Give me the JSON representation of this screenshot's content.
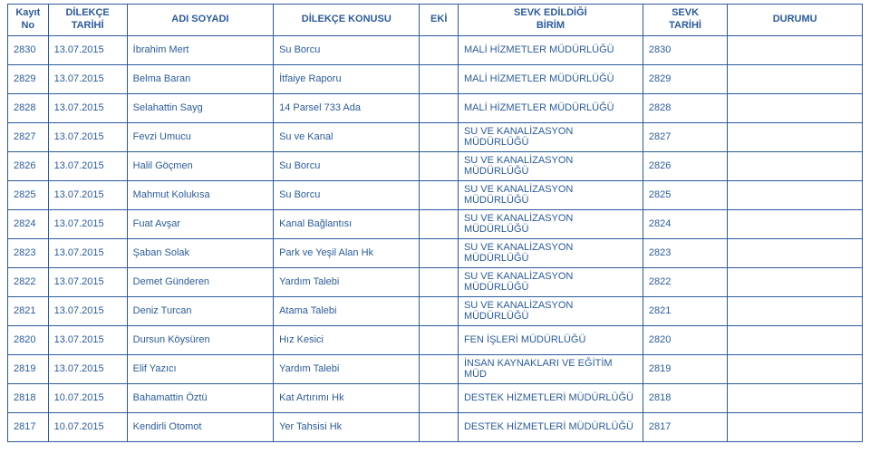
{
  "columns": [
    {
      "key": "kayit",
      "label": "Kayıt\nNo"
    },
    {
      "key": "dilekceTarihi",
      "label": "DİLEKÇE\nTARİHİ"
    },
    {
      "key": "adiSoyadi",
      "label": "ADI SOYADI"
    },
    {
      "key": "dilekceKonusu",
      "label": "DİLEKÇE KONUSU"
    },
    {
      "key": "eki",
      "label": "EKİ"
    },
    {
      "key": "sevkBirim",
      "label": "SEVK EDİLDİĞİ\nBİRİM"
    },
    {
      "key": "sevkTarihi",
      "label": "SEVK\nTARİHİ"
    },
    {
      "key": "durumu",
      "label": "DURUMU"
    }
  ],
  "rows": [
    {
      "kayit": "2830",
      "dilekceTarihi": "13.07.2015",
      "adiSoyadi": "İbrahim Mert",
      "dilekceKonusu": "Su Borcu",
      "eki": "",
      "sevkBirim": "MALİ HİZMETLER MÜDÜRLÜĞÜ",
      "sevkTarihi": "2830",
      "durumu": ""
    },
    {
      "kayit": "2829",
      "dilekceTarihi": "13.07.2015",
      "adiSoyadi": "Belma Baran",
      "dilekceKonusu": "İtfaiye Raporu",
      "eki": "",
      "sevkBirim": "MALİ HİZMETLER MÜDÜRLÜĞÜ",
      "sevkTarihi": "2829",
      "durumu": ""
    },
    {
      "kayit": "2828",
      "dilekceTarihi": "13.07.2015",
      "adiSoyadi": "Selahattin Sayg",
      "dilekceKonusu": "14 Parsel 733 Ada",
      "eki": "",
      "sevkBirim": "MALİ HİZMETLER MÜDÜRLÜĞÜ",
      "sevkTarihi": "2828",
      "durumu": ""
    },
    {
      "kayit": "2827",
      "dilekceTarihi": "13.07.2015",
      "adiSoyadi": "Fevzi Umucu",
      "dilekceKonusu": "Su ve Kanal",
      "eki": "",
      "sevkBirim": "SU VE KANALİZASYON MÜDÜRLÜĞÜ",
      "sevkTarihi": "2827",
      "durumu": ""
    },
    {
      "kayit": "2826",
      "dilekceTarihi": "13.07.2015",
      "adiSoyadi": "Halil Göçmen",
      "dilekceKonusu": "Su Borcu",
      "eki": "",
      "sevkBirim": "SU VE KANALİZASYON MÜDÜRLÜĞÜ",
      "sevkTarihi": "2826",
      "durumu": ""
    },
    {
      "kayit": "2825",
      "dilekceTarihi": "13.07.2015",
      "adiSoyadi": "Mahmut Kolukısa",
      "dilekceKonusu": "Su Borcu",
      "eki": "",
      "sevkBirim": "SU VE KANALİZASYON MÜDÜRLÜĞÜ",
      "sevkTarihi": "2825",
      "durumu": ""
    },
    {
      "kayit": "2824",
      "dilekceTarihi": "13.07.2015",
      "adiSoyadi": "Fuat Avşar",
      "dilekceKonusu": "Kanal Bağlantısı",
      "eki": "",
      "sevkBirim": "SU VE KANALİZASYON MÜDÜRLÜĞÜ",
      "sevkTarihi": "2824",
      "durumu": ""
    },
    {
      "kayit": "2823",
      "dilekceTarihi": "13.07.2015",
      "adiSoyadi": "Şaban Solak",
      "dilekceKonusu": "Park ve Yeşil Alan Hk",
      "eki": "",
      "sevkBirim": "SU VE KANALİZASYON MÜDÜRLÜĞÜ",
      "sevkTarihi": "2823",
      "durumu": ""
    },
    {
      "kayit": "2822",
      "dilekceTarihi": "13.07.2015",
      "adiSoyadi": "Demet Günderen",
      "dilekceKonusu": "Yardım Talebi",
      "eki": "",
      "sevkBirim": "SU VE KANALİZASYON MÜDÜRLÜĞÜ",
      "sevkTarihi": "2822",
      "durumu": ""
    },
    {
      "kayit": "2821",
      "dilekceTarihi": "13.07.2015",
      "adiSoyadi": "Deniz Turcan",
      "dilekceKonusu": "Atama Talebi",
      "eki": "",
      "sevkBirim": "SU VE KANALİZASYON MÜDÜRLÜĞÜ",
      "sevkTarihi": "2821",
      "durumu": ""
    },
    {
      "kayit": "2820",
      "dilekceTarihi": "13.07.2015",
      "adiSoyadi": "Dursun Köysüren",
      "dilekceKonusu": "Hız Kesici",
      "eki": "",
      "sevkBirim": "FEN İŞLERİ MÜDÜRLÜĞÜ",
      "sevkTarihi": "2820",
      "durumu": ""
    },
    {
      "kayit": "2819",
      "dilekceTarihi": "13.07.2015",
      "adiSoyadi": "Elif Yazıcı",
      "dilekceKonusu": "Yardım Talebi",
      "eki": "",
      "sevkBirim": "İNSAN KAYNAKLARI VE EĞİTİM MÜD",
      "sevkTarihi": "2819",
      "durumu": ""
    },
    {
      "kayit": "2818",
      "dilekceTarihi": "10.07.2015",
      "adiSoyadi": "Bahamattin Öztü",
      "dilekceKonusu": "Kat Artırımı Hk",
      "eki": "",
      "sevkBirim": "DESTEK HİZMETLERİ MÜDÜRLÜĞÜ",
      "sevkTarihi": "2818",
      "durumu": ""
    },
    {
      "kayit": "2817",
      "dilekceTarihi": "10.07.2015",
      "adiSoyadi": "Kendirli Otomot",
      "dilekceKonusu": "Yer Tahsisi Hk",
      "eki": "",
      "sevkBirim": "DESTEK HİZMETLERİ MÜDÜRLÜĞÜ",
      "sevkTarihi": "2817",
      "durumu": ""
    }
  ],
  "colors": {
    "text": "#2b5b9b",
    "border": "#2b5b9b",
    "background": "#ffffff"
  }
}
